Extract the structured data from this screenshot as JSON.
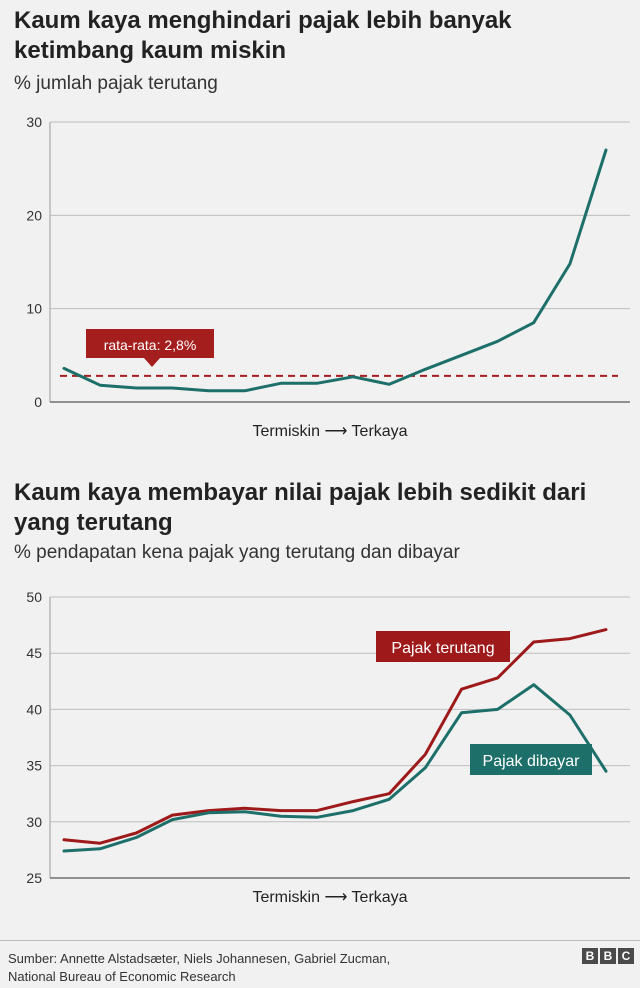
{
  "chart_data": [
    {
      "type": "line",
      "title": "Kaum kaya menghindari pajak lebih banyak ketimbang kaum miskin",
      "subtitle": "% jumlah pajak terutang",
      "xlabel": "Termiskin ⟶ Terkaya",
      "ylim": [
        0,
        30
      ],
      "yticks": [
        0,
        10,
        20,
        30
      ],
      "grid": true,
      "series": [
        {
          "name": "",
          "color": "#1d6f6a",
          "values": [
            3.6,
            1.8,
            1.5,
            1.5,
            1.2,
            1.2,
            2.0,
            2.0,
            2.7,
            1.9,
            3.5,
            5.0,
            6.5,
            8.5,
            14.8,
            27.0
          ]
        }
      ],
      "reference_line": {
        "value": 2.8,
        "color": "#a51e1e",
        "label": "rata-rata: 2,8%"
      }
    },
    {
      "type": "line",
      "title": "Kaum kaya membayar nilai pajak lebih sedikit dari yang terutang",
      "subtitle": "% pendapatan kena pajak yang terutang dan dibayar",
      "xlabel": "Termiskin ⟶ Terkaya",
      "ylim": [
        25,
        50
      ],
      "yticks": [
        25,
        30,
        35,
        40,
        45,
        50
      ],
      "grid": true,
      "series": [
        {
          "name": "Pajak terutang",
          "color": "#9e1a1a",
          "values": [
            28.4,
            28.1,
            29.0,
            30.6,
            31.0,
            31.2,
            31.0,
            31.0,
            31.8,
            32.5,
            36.0,
            41.8,
            42.8,
            46.0,
            46.3,
            47.1
          ]
        },
        {
          "name": "Pajak dibayar",
          "color": "#1d6f6a",
          "values": [
            27.4,
            27.6,
            28.6,
            30.2,
            30.8,
            30.9,
            30.5,
            30.4,
            31.0,
            32.0,
            34.8,
            39.7,
            40.0,
            42.2,
            39.5,
            34.5
          ]
        }
      ]
    }
  ],
  "footer": {
    "source_line1": "Sumber: Annette Alstadsæter, Niels Johannesen, Gabriel Zucman,",
    "source_line2": "National Bureau of Economic Research",
    "logo": [
      "B",
      "B",
      "C"
    ]
  }
}
